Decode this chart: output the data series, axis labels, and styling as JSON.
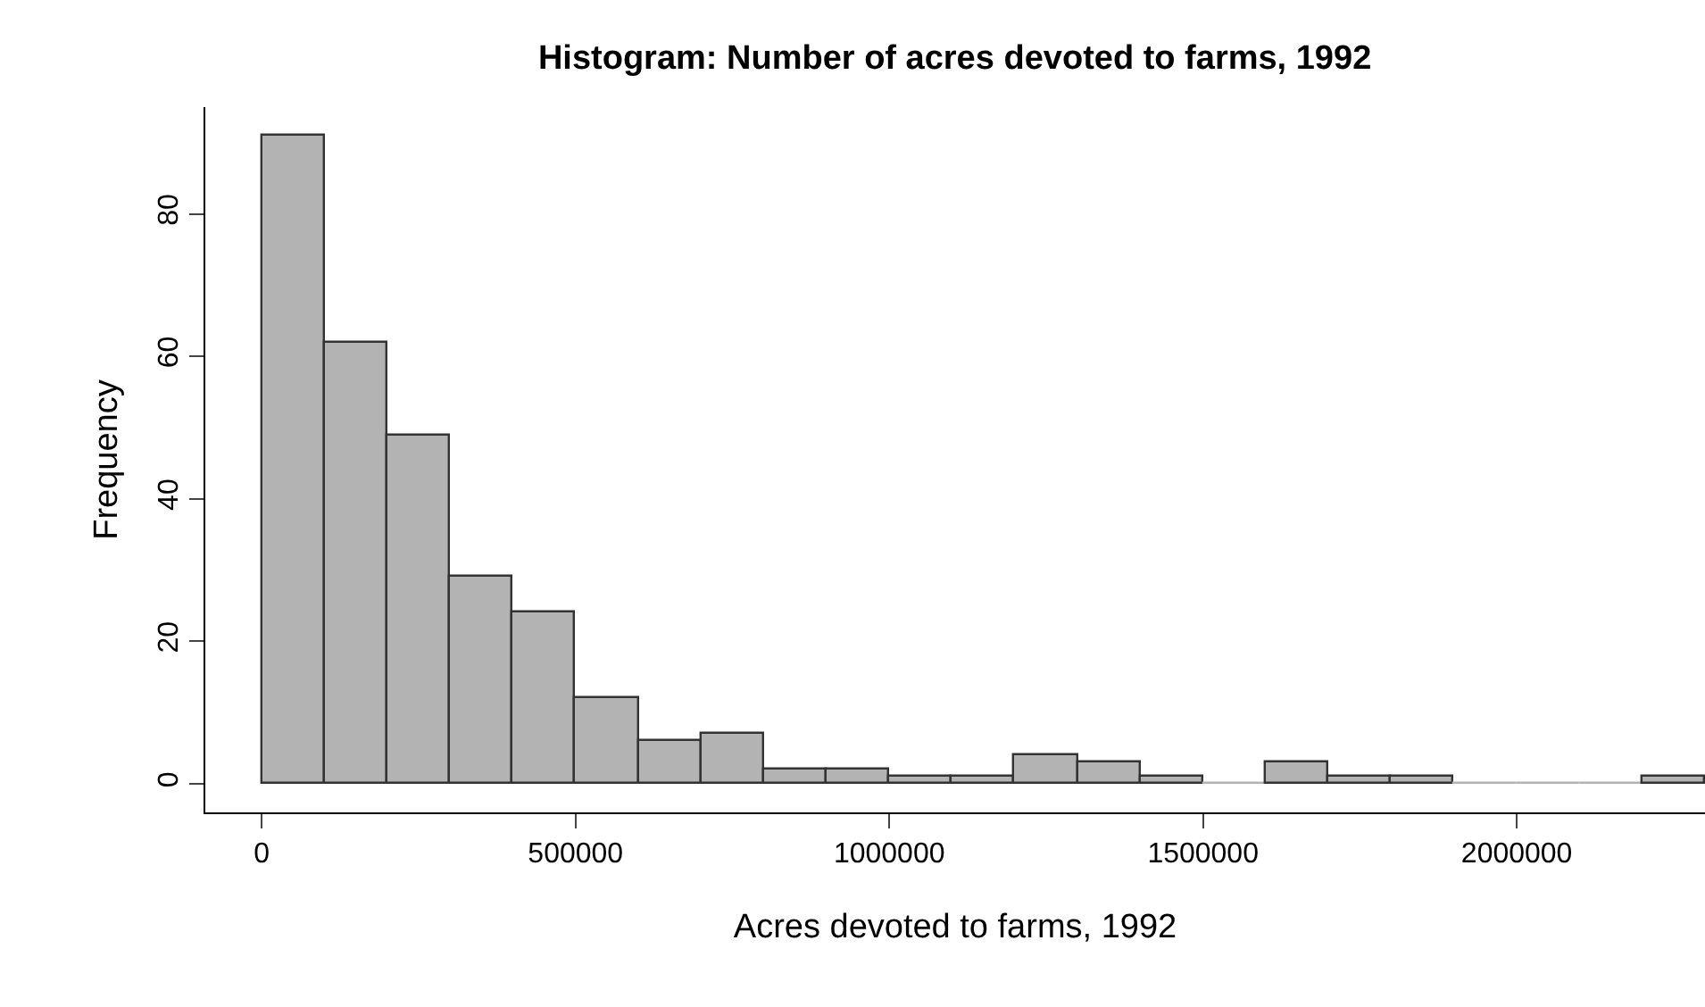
{
  "chart_data": {
    "type": "histogram",
    "title": "Histogram: Number of acres devoted to farms, 1992",
    "xlabel": "Acres devoted to farms, 1992",
    "ylabel": "Frequency",
    "bins": [
      0,
      100000,
      200000,
      300000,
      400000,
      500000,
      600000,
      700000,
      800000,
      900000,
      1000000,
      1100000,
      1200000,
      1300000,
      1400000,
      1500000,
      1600000,
      1700000,
      1800000,
      1900000,
      2000000,
      2100000,
      2200000,
      2300000
    ],
    "values": [
      91,
      62,
      49,
      29,
      24,
      12,
      6,
      7,
      2,
      2,
      1,
      1,
      4,
      3,
      1,
      0,
      3,
      1,
      1,
      0,
      0,
      0,
      1
    ],
    "color": "#b3b3b3",
    "xlim": [
      -90000,
      2300000
    ],
    "xticks": [
      0,
      500000,
      1000000,
      1500000,
      2000000
    ],
    "ylim": [
      -4,
      95
    ],
    "yticks": [
      0,
      20,
      40,
      60,
      80
    ]
  }
}
